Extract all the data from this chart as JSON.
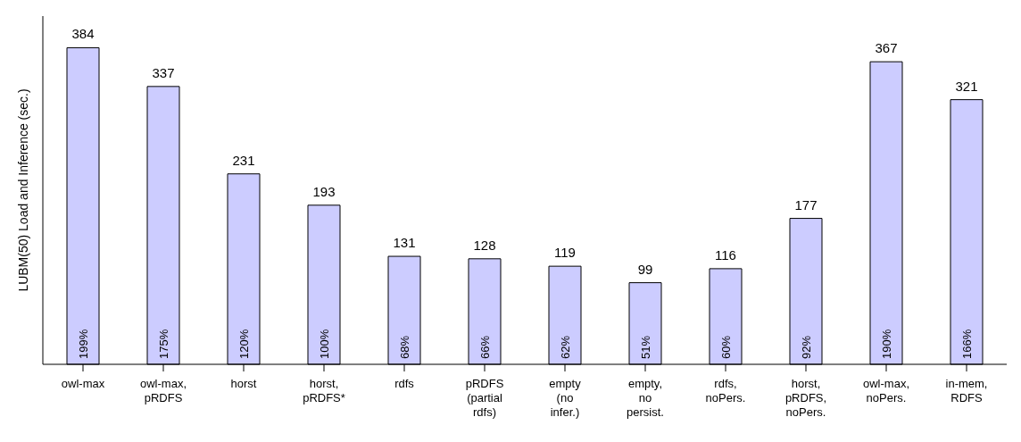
{
  "chart_data": {
    "type": "bar",
    "ylabel": "LUBM(50) Load and Inference  (sec.)",
    "categories": [
      "owl-max",
      "owl-max,\npRDFS",
      "horst",
      "horst,\npRDFS*",
      "rdfs",
      "pRDFS\n(partial\nrdfs)",
      "empty\n(no\ninfer.)",
      "empty,\nno\npersist.",
      "rdfs,\nnoPers.",
      "horst,\npRDFS,\nnoPers.",
      "owl-max,\nnoPers.",
      "in-mem,\nRDFS"
    ],
    "values": [
      384,
      337,
      231,
      193,
      131,
      128,
      119,
      99,
      116,
      177,
      367,
      321
    ],
    "color": "#ccccff",
    "data_labels": true,
    "grid": false,
    "legend": false,
    "annotations": [
      "199%",
      "175%",
      "120%",
      "100%",
      "68%",
      "66%",
      "62%",
      "51%",
      "60%",
      "92%",
      "190%",
      "166%"
    ]
  }
}
